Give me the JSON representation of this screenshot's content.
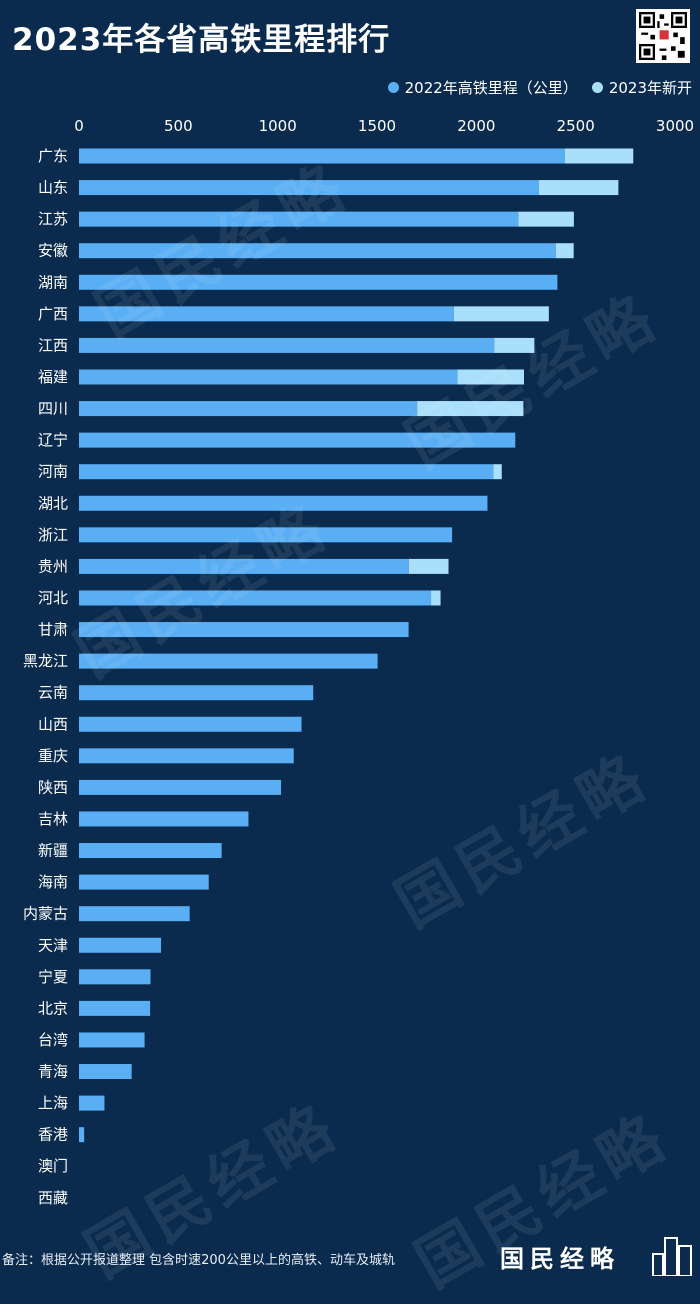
{
  "title": "2023年各省高铁里程排行",
  "legend": {
    "items": [
      {
        "label": "2022年高铁里程（公里）",
        "color": "#5aaef4"
      },
      {
        "label": "2023年新开",
        "color": "#a9dffb"
      }
    ]
  },
  "footnote": "备注：根据公开报道整理  包含时速200公里以上的高铁、动车及城轨",
  "brand": "国民经略",
  "watermark": "国民经略",
  "chart_data": {
    "type": "bar",
    "orientation": "horizontal",
    "stacked": true,
    "xlim": [
      0,
      3000
    ],
    "x_ticks": [
      0,
      500,
      1000,
      1500,
      2000,
      2500,
      3000
    ],
    "grid": false,
    "legend_position": "top-right",
    "categories": [
      "广东",
      "山东",
      "江苏",
      "安徽",
      "湖南",
      "广西",
      "江西",
      "福建",
      "四川",
      "辽宁",
      "河南",
      "湖北",
      "浙江",
      "贵州",
      "河北",
      "甘肃",
      "黑龙江",
      "云南",
      "山西",
      "重庆",
      "陕西",
      "吉林",
      "新疆",
      "海南",
      "内蒙古",
      "天津",
      "宁夏",
      "北京",
      "台湾",
      "青海",
      "上海",
      "香港",
      "澳门",
      "西藏"
    ],
    "series": [
      {
        "name": "2022年高铁里程（公里）",
        "color": "#5aaef4",
        "values": [
          2445,
          2315,
          2212,
          2400,
          2408,
          1887,
          2090,
          1905,
          1702,
          2196,
          2085,
          2056,
          1878,
          1660,
          1772,
          1659,
          1503,
          1179,
          1120,
          1081,
          1017,
          853,
          718,
          653,
          557,
          413,
          360,
          358,
          330,
          265,
          128,
          26,
          0,
          0
        ]
      },
      {
        "name": "2023年新开",
        "color": "#a9dffb",
        "values": [
          345,
          400,
          279,
          90,
          0,
          478,
          202,
          335,
          535,
          0,
          43,
          0,
          0,
          200,
          48,
          0,
          0,
          0,
          0,
          0,
          0,
          0,
          0,
          0,
          0,
          0,
          0,
          0,
          0,
          0,
          0,
          0,
          0,
          0
        ]
      }
    ]
  }
}
